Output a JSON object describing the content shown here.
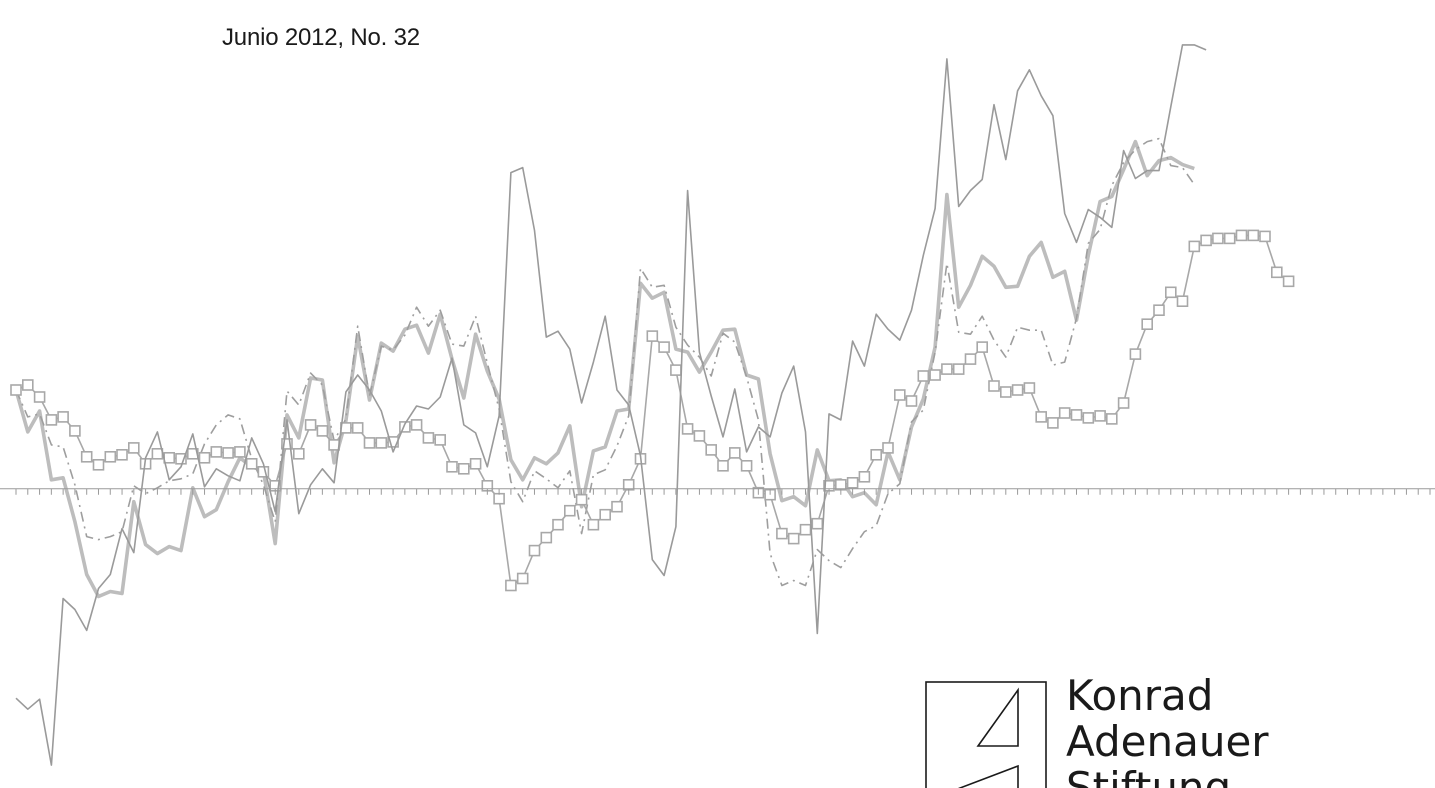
{
  "header": {
    "date_issue": "Junio 2012, No. 32"
  },
  "brand": {
    "lines": [
      "Konrad",
      "Adenauer",
      "Stiftung"
    ],
    "color": "#1a1a1a"
  },
  "chart_data": {
    "type": "line",
    "title": "",
    "xlabel": "",
    "ylabel": "",
    "grid": false,
    "legend": "none",
    "x_count": 121,
    "ylim": [
      -3.0,
      4.9
    ],
    "line_color": "#9a9a9a",
    "series": [
      {
        "style": "thick",
        "color": "#bdbdbd",
        "values": [
          0.99,
          0.57,
          0.78,
          0.09,
          0.11,
          -0.33,
          -0.86,
          -1.08,
          -1.03,
          -1.05,
          -0.13,
          -0.56,
          -0.65,
          -0.58,
          -0.62,
          0.01,
          -0.28,
          -0.21,
          0.07,
          0.31,
          0.22,
          0.18,
          -0.55,
          0.74,
          0.51,
          1.11,
          1.09,
          0.26,
          0.68,
          1.53,
          0.89,
          1.46,
          1.38,
          1.6,
          1.64,
          1.36,
          1.75,
          1.3,
          0.91,
          1.55,
          1.18,
          0.9,
          0.29,
          0.09,
          0.31,
          0.25,
          0.36,
          0.63,
          -0.18,
          0.38,
          0.42,
          0.78,
          0.8,
          2.06,
          1.91,
          1.97,
          1.4,
          1.37,
          1.17,
          1.37,
          1.59,
          1.6,
          1.14,
          1.1,
          0.35,
          -0.12,
          -0.08,
          -0.17,
          0.39,
          0.08,
          0.09,
          -0.08,
          -0.04,
          -0.16,
          0.37,
          0.09,
          0.62,
          0.9,
          1.42,
          2.95,
          1.82,
          2.04,
          2.33,
          2.23,
          2.02,
          2.03,
          2.33,
          2.47,
          2.12,
          2.18,
          1.69,
          2.34,
          2.88,
          2.93,
          3.2,
          3.48,
          3.14,
          3.29,
          3.32,
          3.25,
          3.21
        ]
      },
      {
        "style": "dashdot",
        "color": "#9e9e9e",
        "values": [
          0.99,
          0.72,
          0.75,
          0.44,
          0.42,
          0.04,
          -0.48,
          -0.51,
          -0.48,
          -0.43,
          0.03,
          -0.05,
          0.01,
          0.08,
          0.1,
          0.15,
          0.45,
          0.64,
          0.74,
          0.7,
          0.3,
          0.04,
          -0.33,
          0.98,
          0.84,
          1.16,
          1.04,
          0.48,
          0.7,
          1.63,
          0.93,
          1.43,
          1.39,
          1.54,
          1.82,
          1.63,
          1.79,
          1.45,
          1.43,
          1.73,
          1.26,
          0.8,
          0.07,
          -0.13,
          0.18,
          0.1,
          0.01,
          0.18,
          -0.45,
          0.14,
          0.19,
          0.43,
          0.73,
          2.21,
          2.02,
          2.04,
          1.62,
          1.44,
          1.32,
          1.13,
          1.56,
          1.47,
          1.12,
          0.69,
          -0.65,
          -0.97,
          -0.92,
          -0.97,
          -0.61,
          -0.72,
          -0.79,
          -0.6,
          -0.43,
          -0.37,
          -0.05,
          0.05,
          0.67,
          0.79,
          1.37,
          2.26,
          1.57,
          1.55,
          1.73,
          1.49,
          1.32,
          1.62,
          1.59,
          1.59,
          1.24,
          1.27,
          1.71,
          2.46,
          2.6,
          3.04,
          3.27,
          3.4,
          3.48,
          3.51,
          3.24,
          3.22,
          3.05
        ]
      },
      {
        "style": "squares",
        "color": "#a8a8a8",
        "values": [
          0.99,
          1.04,
          0.92,
          0.69,
          0.72,
          0.58,
          0.32,
          0.24,
          0.32,
          0.34,
          0.41,
          0.25,
          0.35,
          0.31,
          0.3,
          0.35,
          0.31,
          0.37,
          0.36,
          0.37,
          0.25,
          0.17,
          0.03,
          0.45,
          0.35,
          0.64,
          0.58,
          0.44,
          0.61,
          0.61,
          0.46,
          0.46,
          0.47,
          0.62,
          0.64,
          0.51,
          0.49,
          0.22,
          0.2,
          0.25,
          0.03,
          -0.1,
          -0.97,
          -0.9,
          -0.62,
          -0.49,
          -0.36,
          -0.22,
          -0.11,
          -0.36,
          -0.26,
          -0.18,
          0.04,
          0.3,
          1.53,
          1.42,
          1.19,
          0.6,
          0.53,
          0.39,
          0.23,
          0.36,
          0.23,
          -0.04,
          -0.06,
          -0.45,
          -0.5,
          -0.41,
          -0.35,
          0.03,
          0.04,
          0.06,
          0.12,
          0.34,
          0.41,
          0.94,
          0.88,
          1.13,
          1.14,
          1.2,
          1.2,
          1.3,
          1.42,
          1.03,
          0.97,
          0.99,
          1.01,
          0.72,
          0.66,
          0.76,
          0.74,
          0.71,
          0.73,
          0.7,
          0.86,
          1.35,
          1.65,
          1.79,
          1.97,
          1.88,
          2.43,
          2.49,
          2.51,
          2.51,
          2.54,
          2.54,
          2.53,
          2.17,
          2.08
        ]
      },
      {
        "style": "thin",
        "color": "#9a9a9a",
        "values": [
          -2.1,
          -2.21,
          -2.11,
          -2.77,
          -1.1,
          -1.21,
          -1.42,
          -1.0,
          -0.86,
          -0.4,
          -0.64,
          0.31,
          0.57,
          0.09,
          0.22,
          0.55,
          0.02,
          0.2,
          0.13,
          0.08,
          0.51,
          0.25,
          -0.23,
          0.69,
          -0.25,
          0.04,
          0.2,
          0.06,
          0.97,
          1.14,
          0.99,
          0.78,
          0.37,
          0.65,
          0.83,
          0.8,
          0.92,
          1.31,
          0.64,
          0.56,
          0.22,
          0.73,
          3.17,
          3.22,
          2.59,
          1.52,
          1.58,
          1.4,
          0.86,
          1.27,
          1.73,
          0.99,
          0.84,
          0.33,
          -0.71,
          -0.87,
          -0.38,
          2.99,
          1.37,
          0.93,
          0.52,
          1.0,
          0.37,
          0.62,
          0.52,
          0.96,
          1.23,
          0.57,
          -1.45,
          0.75,
          0.69,
          1.48,
          1.23,
          1.75,
          1.6,
          1.49,
          1.79,
          2.34,
          2.81,
          4.31,
          2.83,
          2.99,
          3.1,
          3.85,
          3.3,
          3.99,
          4.2,
          3.94,
          3.74,
          2.76,
          2.47,
          2.8,
          2.72,
          2.62,
          3.39,
          3.11,
          3.19,
          3.19,
          3.83,
          4.45,
          4.45,
          4.4
        ]
      }
    ]
  }
}
